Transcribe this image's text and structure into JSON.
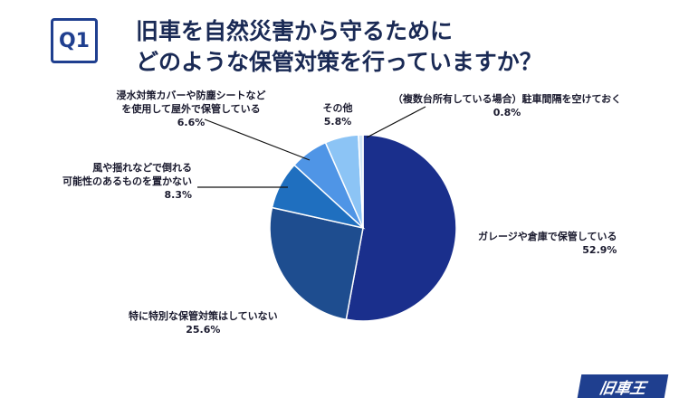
{
  "header": {
    "badge": "Q1",
    "title_line1": "旧車を自然災害から守るために",
    "title_line2": "どのような保管対策を行っていますか？"
  },
  "logo": {
    "text": "旧車王"
  },
  "chart_data": {
    "type": "pie",
    "start_angle_deg": 0,
    "direction": "clockwise",
    "slices": [
      {
        "label": "ガレージや倉庫で保管している",
        "value": 52.9,
        "display": "52.9%",
        "color": "#1a2f8c"
      },
      {
        "label": "特に特別な保管対策はしていない",
        "value": 25.6,
        "display": "25.6%",
        "color": "#1e4d8f"
      },
      {
        "label": "風や揺れなどで倒れる可能性のあるものを置かない",
        "value": 8.3,
        "display": "8.3%",
        "color": "#1f6fbf"
      },
      {
        "label": "浸水対策カバーや防塵シートなどを使用して屋外で保管している",
        "value": 6.6,
        "display": "6.6%",
        "color": "#4f95e6"
      },
      {
        "label": "その他",
        "value": 5.8,
        "display": "5.8%",
        "color": "#8cc4f5"
      },
      {
        "label": "（複数台所有している場合）駐車間隔を空けておく",
        "value": 0.8,
        "display": "0.8%",
        "color": "#cfe4f7"
      }
    ],
    "label_lines": {
      "s0": [
        "ガレージや倉庫で保管している"
      ],
      "s1": [
        "特に特別な保管対策はしていない"
      ],
      "s2": [
        "風や揺れなどで倒れる",
        "可能性のあるものを置かない"
      ],
      "s3": [
        "浸水対策カバーや防塵シートなど",
        "を使用して屋外で保管している"
      ],
      "s4": [
        "その他"
      ],
      "s5": [
        "（複数台所有している場合）駐車間隔を空けておく"
      ]
    }
  }
}
